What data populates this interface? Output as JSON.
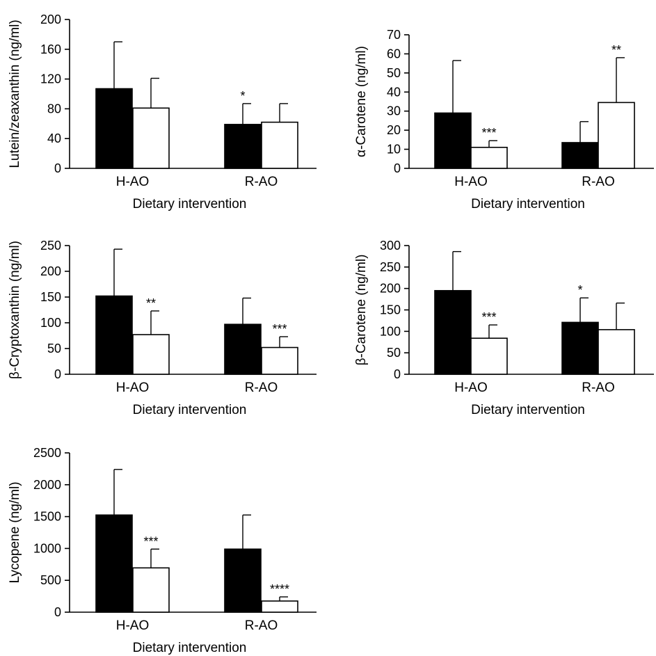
{
  "chart_data": [
    {
      "type": "bar",
      "categories": [
        "H-AO",
        "R-AO"
      ],
      "xlabel": "Dietary intervention",
      "ylabel": "Lutein/zeaxanthin (ng/ml)",
      "ylim": [
        0,
        200
      ],
      "yticks": [
        0,
        40,
        80,
        120,
        160,
        200
      ],
      "series": [
        {
          "color": "#000000",
          "values": [
            107,
            59
          ],
          "errors": [
            63,
            28
          ],
          "sig": [
            "",
            "*"
          ]
        },
        {
          "color": "#ffffff",
          "values": [
            81,
            62
          ],
          "errors": [
            40,
            25
          ],
          "sig": [
            "",
            ""
          ]
        }
      ]
    },
    {
      "type": "bar",
      "categories": [
        "H-AO",
        "R-AO"
      ],
      "xlabel": "Dietary intervention",
      "ylabel": "α-Carotene (ng/ml)",
      "ylim": [
        0,
        70
      ],
      "yticks": [
        0,
        10,
        20,
        30,
        40,
        50,
        60,
        70
      ],
      "series": [
        {
          "color": "#000000",
          "values": [
            29,
            13.5
          ],
          "errors": [
            27.5,
            11
          ],
          "sig": [
            "",
            ""
          ]
        },
        {
          "color": "#ffffff",
          "values": [
            11,
            34.5
          ],
          "errors": [
            3.5,
            23.5
          ],
          "sig": [
            "***",
            "**"
          ]
        }
      ]
    },
    {
      "type": "bar",
      "categories": [
        "H-AO",
        "R-AO"
      ],
      "xlabel": "Dietary intervention",
      "ylabel": "β-Cryptoxanthin (ng/ml)",
      "ylim": [
        0,
        250
      ],
      "yticks": [
        0,
        50,
        100,
        150,
        200,
        250
      ],
      "series": [
        {
          "color": "#000000",
          "values": [
            152,
            97
          ],
          "errors": [
            91,
            51
          ],
          "sig": [
            "",
            ""
          ]
        },
        {
          "color": "#ffffff",
          "values": [
            77,
            52
          ],
          "errors": [
            46,
            21
          ],
          "sig": [
            "**",
            "***"
          ]
        }
      ]
    },
    {
      "type": "bar",
      "categories": [
        "H-AO",
        "R-AO"
      ],
      "xlabel": "Dietary intervention",
      "ylabel": "β-Carotene (ng/ml)",
      "ylim": [
        0,
        300
      ],
      "yticks": [
        0,
        50,
        100,
        150,
        200,
        250,
        300
      ],
      "series": [
        {
          "color": "#000000",
          "values": [
            195,
            121
          ],
          "errors": [
            91,
            57
          ],
          "sig": [
            "",
            "*"
          ]
        },
        {
          "color": "#ffffff",
          "values": [
            84,
            104
          ],
          "errors": [
            31,
            62
          ],
          "sig": [
            "***",
            ""
          ]
        }
      ]
    },
    {
      "type": "bar",
      "categories": [
        "H-AO",
        "R-AO"
      ],
      "xlabel": "Dietary intervention",
      "ylabel": "Lycopene (ng/ml)",
      "ylim": [
        0,
        2500
      ],
      "yticks": [
        0,
        500,
        1000,
        1500,
        2000,
        2500
      ],
      "series": [
        {
          "color": "#000000",
          "values": [
            1525,
            990
          ],
          "errors": [
            715,
            535
          ],
          "sig": [
            "",
            ""
          ]
        },
        {
          "color": "#ffffff",
          "values": [
            695,
            175
          ],
          "errors": [
            295,
            65
          ],
          "sig": [
            "***",
            "****"
          ]
        }
      ]
    }
  ]
}
